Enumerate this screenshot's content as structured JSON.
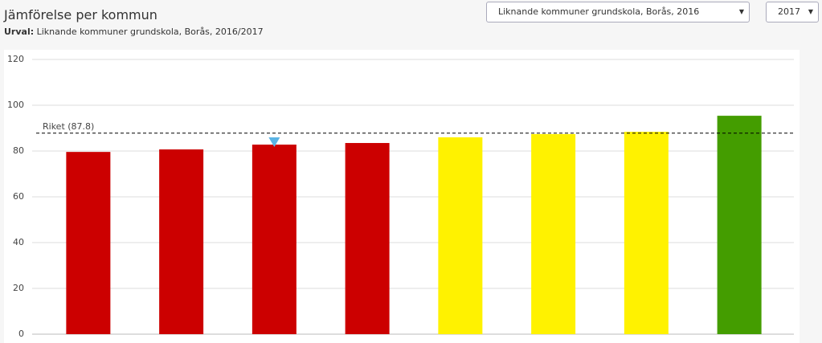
{
  "header": {
    "title": "Jämförelse per kommun",
    "subtitle_label": "Urval:",
    "subtitle": "Liknande kommuner grundskola, Borås, 2016/2017"
  },
  "controls": {
    "selection": "Liknande kommuner grundskola, Borås, 2016",
    "year": "2017"
  },
  "chart_data": {
    "type": "bar",
    "categories": [
      null,
      null,
      null,
      null,
      null,
      null,
      null,
      null
    ],
    "values": [
      79.6,
      80.7,
      82.8,
      83.5,
      86,
      87.4,
      88.4,
      95.4
    ],
    "colors": [
      "#cc0000",
      "#cc0000",
      "#cc0000",
      "#cc0000",
      "#fff200",
      "#fff200",
      "#fff200",
      "#449d00"
    ],
    "highlight_index": 2,
    "highlight_color": "#5bb4e5",
    "reference_line": {
      "value": 87.8,
      "label": "Riket (87.8)"
    },
    "ylim": [
      0,
      120
    ],
    "yticks": [
      0,
      20,
      40,
      60,
      80,
      100,
      120
    ],
    "grid": true
  }
}
